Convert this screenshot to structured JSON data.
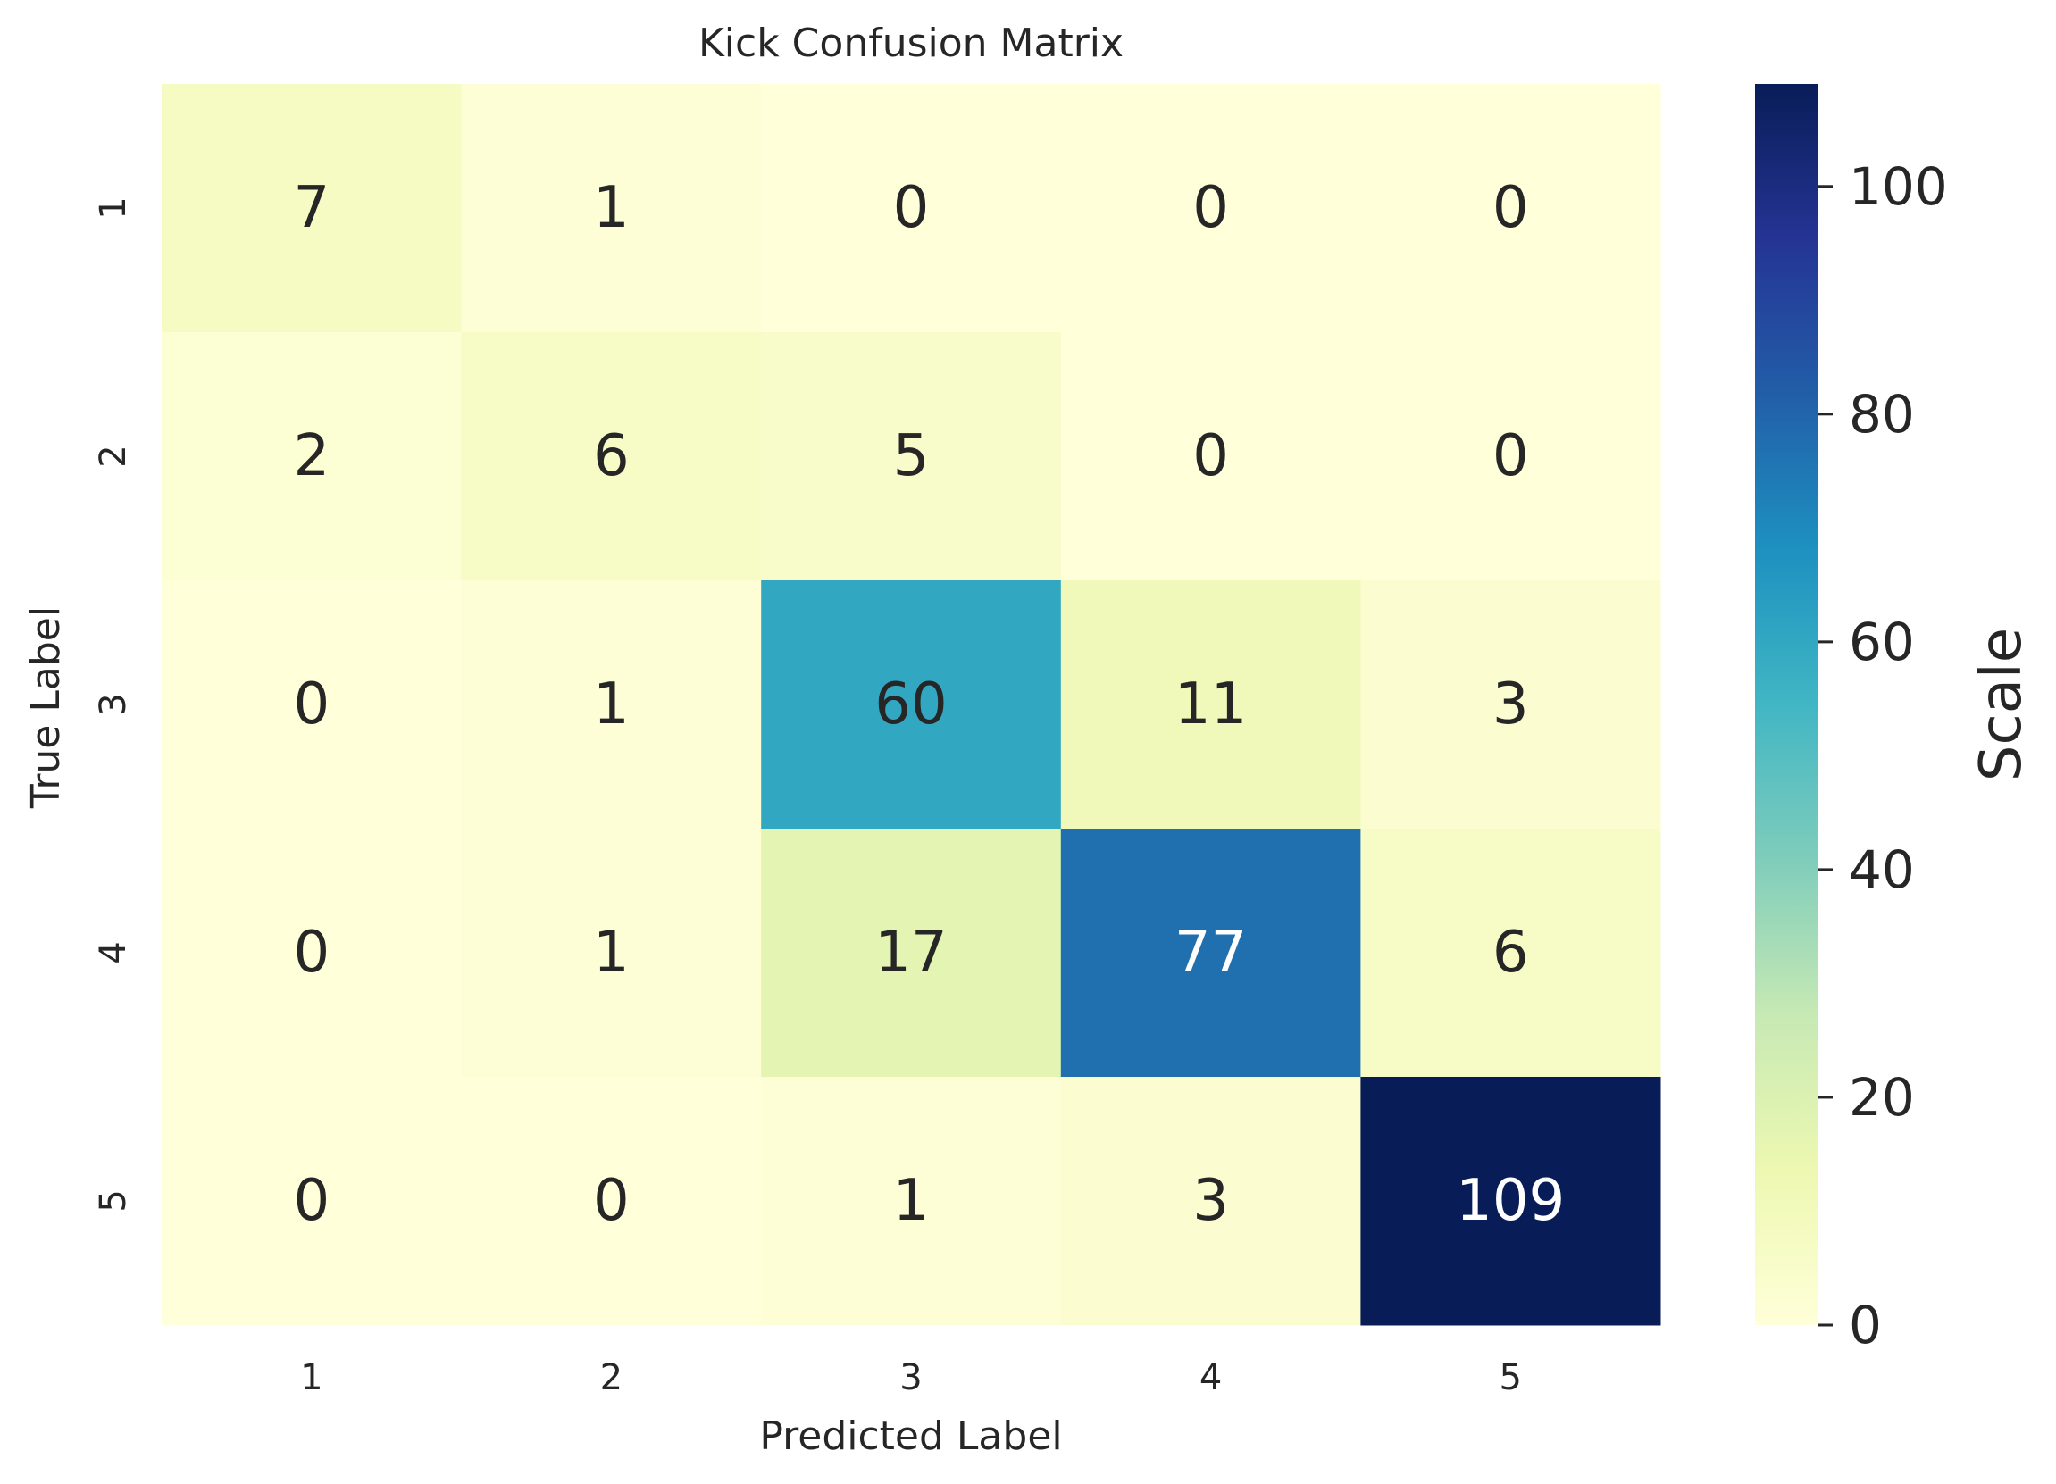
{
  "chart_data": {
    "type": "heatmap",
    "title": "Kick Confusion Matrix",
    "xlabel": "Predicted Label",
    "ylabel": "True Label",
    "x_categories": [
      "1",
      "2",
      "3",
      "4",
      "5"
    ],
    "y_categories": [
      "1",
      "2",
      "3",
      "4",
      "5"
    ],
    "values": [
      [
        7,
        1,
        0,
        0,
        0
      ],
      [
        2,
        6,
        5,
        0,
        0
      ],
      [
        0,
        1,
        60,
        11,
        3
      ],
      [
        0,
        1,
        17,
        77,
        6
      ],
      [
        0,
        0,
        1,
        3,
        109
      ]
    ],
    "colormap": "YlGnBu",
    "vmin": 0,
    "vmax": 109,
    "colorbar": {
      "label": "Scale",
      "ticks": [
        0,
        20,
        40,
        60,
        80,
        100
      ],
      "tick_labels": [
        "0",
        "20",
        "40",
        "60",
        "80",
        "100"
      ]
    },
    "colormap_stops": [
      "#ffffd9",
      "#edf8b1",
      "#c7e9b4",
      "#7fcdbb",
      "#41b6c4",
      "#1d91c0",
      "#225ea8",
      "#253494",
      "#081d58"
    ],
    "text_color_dark": "#262626",
    "text_color_light": "#ffffff"
  }
}
